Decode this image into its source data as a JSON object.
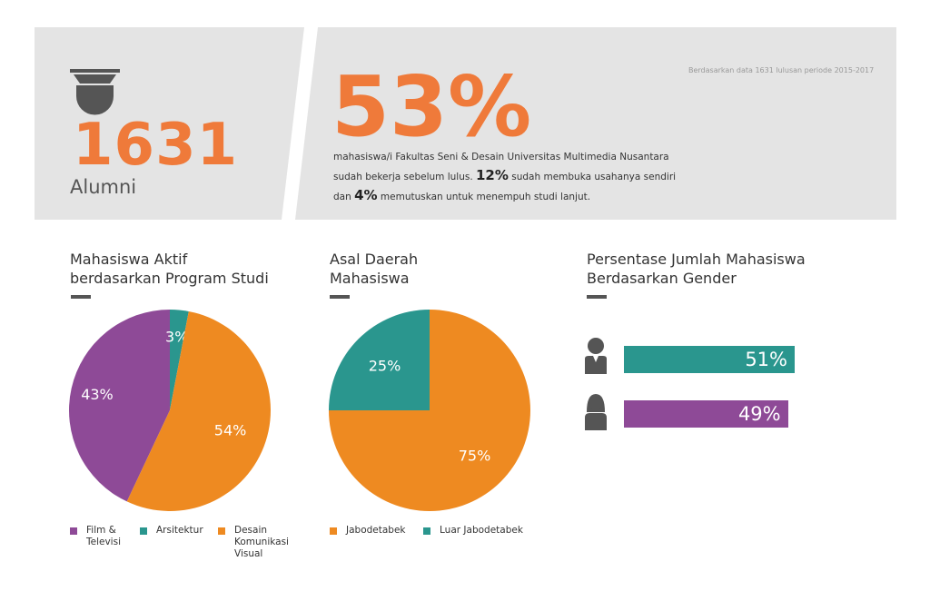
{
  "banner": {
    "alumni_count": "1631",
    "alumni_label": "Alumni",
    "headline_pct": "53%",
    "source_note": "Berdasarkan data 1631 lulusan periode 2015-2017",
    "desc_line1": "mahasiswa/i Fakultas Seni & Desain Universitas Multimedia Nusantara",
    "desc_line2_pre": "sudah bekerja sebelum lulus. ",
    "desc_line2_hl": "12%",
    "desc_line2_post": " sudah membuka usahanya sendiri",
    "desc_line3_pre": "dan ",
    "desc_line3_hl": "4%",
    "desc_line3_post": " memutuskan untuk menempuh studi lanjut.",
    "colors": {
      "banner_bg": "#e4e4e4",
      "accent": "#ef7a3a",
      "icon": "#555555"
    },
    "icon": "graduation-cap-icon"
  },
  "chart_data": [
    {
      "type": "pie",
      "title_line1": "Mahasiswa Aktif",
      "title_line2": "berdasarkan Program Studi",
      "categories": [
        "Film & Televisi",
        "Arsitektur",
        "Desain Komunikasi Visual"
      ],
      "legend_lines": [
        [
          "Film &",
          "Televisi"
        ],
        [
          "Arsitektur"
        ],
        [
          "Desain",
          "Komunikasi",
          "Visual"
        ]
      ],
      "values": [
        43,
        3,
        54
      ],
      "labels": [
        "43%",
        "3%",
        "54%"
      ],
      "colors": [
        "#8e4a97",
        "#2a968e",
        "#ee8a21"
      ],
      "legend_position": "bottom"
    },
    {
      "type": "pie",
      "title_line1": "Asal Daerah",
      "title_line2": "Mahasiswa",
      "categories": [
        "Jabodetabek",
        "Luar Jabodetabek"
      ],
      "legend_lines": [
        [
          "Jabodetabek"
        ],
        [
          "Luar Jabodetabek"
        ]
      ],
      "values": [
        75,
        25
      ],
      "labels": [
        "75%",
        "25%"
      ],
      "colors": [
        "#ee8a21",
        "#2a968e"
      ],
      "legend_position": "bottom"
    },
    {
      "type": "bar",
      "title_line1": "Persentase Jumlah Mahasiswa",
      "title_line2": "Berdasarkan Gender",
      "categories": [
        "Male",
        "Female"
      ],
      "values": [
        51,
        49
      ],
      "labels": [
        "51%",
        "49%"
      ],
      "colors": [
        "#2a968e",
        "#8e4a97"
      ],
      "icons": [
        "male-person-icon",
        "female-person-icon"
      ]
    }
  ]
}
